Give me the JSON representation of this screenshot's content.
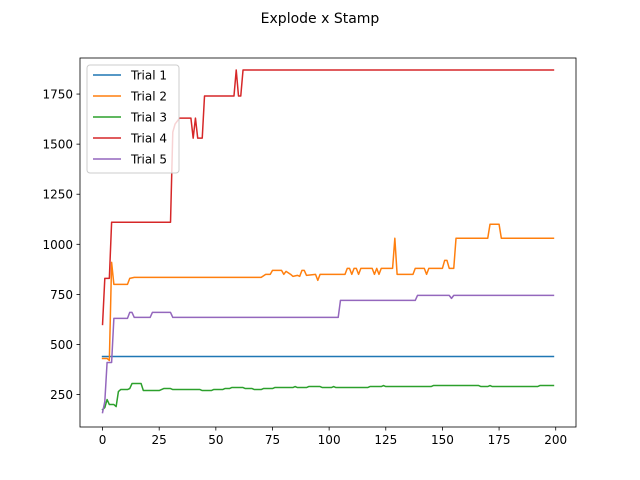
{
  "chart_data": {
    "type": "line",
    "title": "Explode x Stamp",
    "xlabel": "",
    "ylabel": "",
    "xlim": [
      -9.95,
      208.95
    ],
    "ylim": [
      88,
      1930
    ],
    "xticks": [
      0,
      25,
      50,
      75,
      100,
      125,
      150,
      175,
      200
    ],
    "yticks": [
      250,
      500,
      750,
      1000,
      1250,
      1500,
      1750
    ],
    "grid": false,
    "legend_position": "top-left",
    "series": [
      {
        "name": "Trial 1",
        "color": "#1f77b4",
        "points": [
          [
            0,
            440
          ],
          [
            199,
            440
          ]
        ]
      },
      {
        "name": "Trial 2",
        "color": "#ff7f0e",
        "points": [
          [
            0,
            430
          ],
          [
            2,
            430
          ],
          [
            3,
            420
          ],
          [
            4,
            910
          ],
          [
            5,
            800
          ],
          [
            11,
            800
          ],
          [
            12,
            830
          ],
          [
            14,
            835
          ],
          [
            70,
            835
          ],
          [
            72,
            850
          ],
          [
            74,
            850
          ],
          [
            75,
            870
          ],
          [
            79,
            870
          ],
          [
            80,
            850
          ],
          [
            81,
            865
          ],
          [
            83,
            850
          ],
          [
            84,
            840
          ],
          [
            86,
            845
          ],
          [
            87,
            840
          ],
          [
            88,
            870
          ],
          [
            89,
            870
          ],
          [
            90,
            845
          ],
          [
            94,
            850
          ],
          [
            95,
            820
          ],
          [
            96,
            850
          ],
          [
            107,
            850
          ],
          [
            108,
            880
          ],
          [
            109,
            880
          ],
          [
            110,
            850
          ],
          [
            111,
            880
          ],
          [
            112,
            880
          ],
          [
            113,
            850
          ],
          [
            114,
            880
          ],
          [
            119,
            880
          ],
          [
            120,
            850
          ],
          [
            121,
            880
          ],
          [
            122,
            850
          ],
          [
            123,
            880
          ],
          [
            128,
            880
          ],
          [
            129,
            1030
          ],
          [
            130,
            850
          ],
          [
            137,
            850
          ],
          [
            138,
            880
          ],
          [
            142,
            880
          ],
          [
            143,
            850
          ],
          [
            144,
            880
          ],
          [
            150,
            880
          ],
          [
            151,
            920
          ],
          [
            152,
            920
          ],
          [
            153,
            880
          ],
          [
            155,
            880
          ],
          [
            156,
            1030
          ],
          [
            170,
            1030
          ],
          [
            171,
            1100
          ],
          [
            175,
            1100
          ],
          [
            176,
            1030
          ],
          [
            199,
            1030
          ]
        ]
      },
      {
        "name": "Trial 3",
        "color": "#2ca02c",
        "points": [
          [
            0,
            175
          ],
          [
            1,
            185
          ],
          [
            2,
            225
          ],
          [
            3,
            200
          ],
          [
            5,
            200
          ],
          [
            6,
            190
          ],
          [
            7,
            265
          ],
          [
            8,
            275
          ],
          [
            11,
            275
          ],
          [
            12,
            280
          ],
          [
            13,
            305
          ],
          [
            17,
            305
          ],
          [
            18,
            270
          ],
          [
            25,
            270
          ],
          [
            26,
            275
          ],
          [
            27,
            280
          ],
          [
            30,
            280
          ],
          [
            31,
            275
          ],
          [
            43,
            275
          ],
          [
            44,
            270
          ],
          [
            48,
            270
          ],
          [
            49,
            275
          ],
          [
            53,
            275
          ],
          [
            54,
            280
          ],
          [
            56,
            280
          ],
          [
            57,
            285
          ],
          [
            62,
            285
          ],
          [
            63,
            280
          ],
          [
            66,
            280
          ],
          [
            67,
            275
          ],
          [
            70,
            275
          ],
          [
            71,
            280
          ],
          [
            75,
            280
          ],
          [
            76,
            285
          ],
          [
            84,
            285
          ],
          [
            85,
            290
          ],
          [
            86,
            285
          ],
          [
            90,
            285
          ],
          [
            91,
            290
          ],
          [
            96,
            290
          ],
          [
            97,
            285
          ],
          [
            101,
            285
          ],
          [
            102,
            290
          ],
          [
            103,
            285
          ],
          [
            117,
            285
          ],
          [
            118,
            290
          ],
          [
            123,
            290
          ],
          [
            124,
            295
          ],
          [
            125,
            290
          ],
          [
            145,
            290
          ],
          [
            146,
            295
          ],
          [
            166,
            295
          ],
          [
            167,
            290
          ],
          [
            170,
            290
          ],
          [
            171,
            295
          ],
          [
            172,
            290
          ],
          [
            192,
            290
          ],
          [
            193,
            295
          ],
          [
            199,
            295
          ]
        ]
      },
      {
        "name": "Trial 4",
        "color": "#d62728",
        "points": [
          [
            0,
            600
          ],
          [
            1,
            830
          ],
          [
            3,
            830
          ],
          [
            4,
            1110
          ],
          [
            30,
            1110
          ],
          [
            31,
            1560
          ],
          [
            32,
            1600
          ],
          [
            34,
            1630
          ],
          [
            39,
            1630
          ],
          [
            40,
            1530
          ],
          [
            41,
            1630
          ],
          [
            42,
            1530
          ],
          [
            44,
            1530
          ],
          [
            45,
            1740
          ],
          [
            58,
            1740
          ],
          [
            59,
            1870
          ],
          [
            60,
            1740
          ],
          [
            61,
            1740
          ],
          [
            62,
            1870
          ],
          [
            199,
            1870
          ]
        ]
      },
      {
        "name": "Trial 5",
        "color": "#9467bd",
        "points": [
          [
            0,
            160
          ],
          [
            1,
            215
          ],
          [
            2,
            410
          ],
          [
            4,
            410
          ],
          [
            5,
            630
          ],
          [
            11,
            630
          ],
          [
            12,
            660
          ],
          [
            13,
            660
          ],
          [
            14,
            635
          ],
          [
            21,
            635
          ],
          [
            22,
            660
          ],
          [
            30,
            660
          ],
          [
            31,
            635
          ],
          [
            104,
            635
          ],
          [
            105,
            720
          ],
          [
            138,
            720
          ],
          [
            139,
            745
          ],
          [
            153,
            745
          ],
          [
            154,
            730
          ],
          [
            155,
            745
          ],
          [
            199,
            745
          ]
        ]
      }
    ]
  }
}
